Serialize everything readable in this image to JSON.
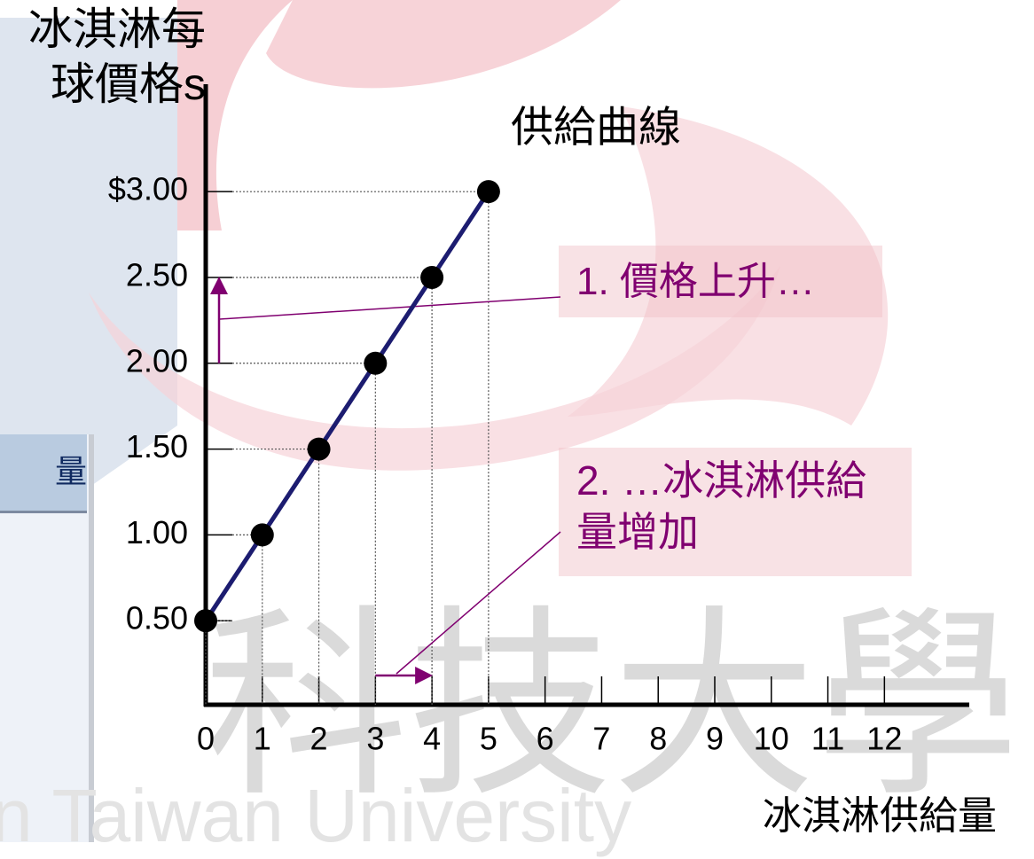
{
  "chart_data": {
    "type": "line",
    "title": "供給曲線",
    "ylabel": "冰淇淋每球價格s",
    "xlabel": "冰淇淋供給量",
    "x": [
      0,
      1,
      2,
      3,
      4,
      5
    ],
    "values": [
      0.5,
      1,
      1.5,
      2,
      2.5,
      3
    ],
    "color": "#1c1c70",
    "marker_color": "#000000",
    "ylim": [
      0,
      3.6
    ],
    "yticks": [
      {
        "value": 0.5,
        "label": "0.50"
      },
      {
        "value": 1,
        "label": "1.00"
      },
      {
        "value": 1.5,
        "label": "1.50"
      },
      {
        "value": 2,
        "label": "2.00"
      },
      {
        "value": 2.5,
        "label": "2.50"
      },
      {
        "value": 3,
        "label": "$3.00"
      }
    ],
    "xlim": [
      0,
      13.5
    ],
    "xticks": [
      0,
      1,
      2,
      3,
      4,
      5,
      6,
      7,
      8,
      9,
      10,
      11,
      12
    ],
    "annotations": [
      "1. 價格上升…",
      "2. …冰淇淋供給量增加"
    ]
  },
  "background": {
    "table_header": "量",
    "watermark_text": "n Taiwan University",
    "watermark_chars": "科技大學"
  }
}
